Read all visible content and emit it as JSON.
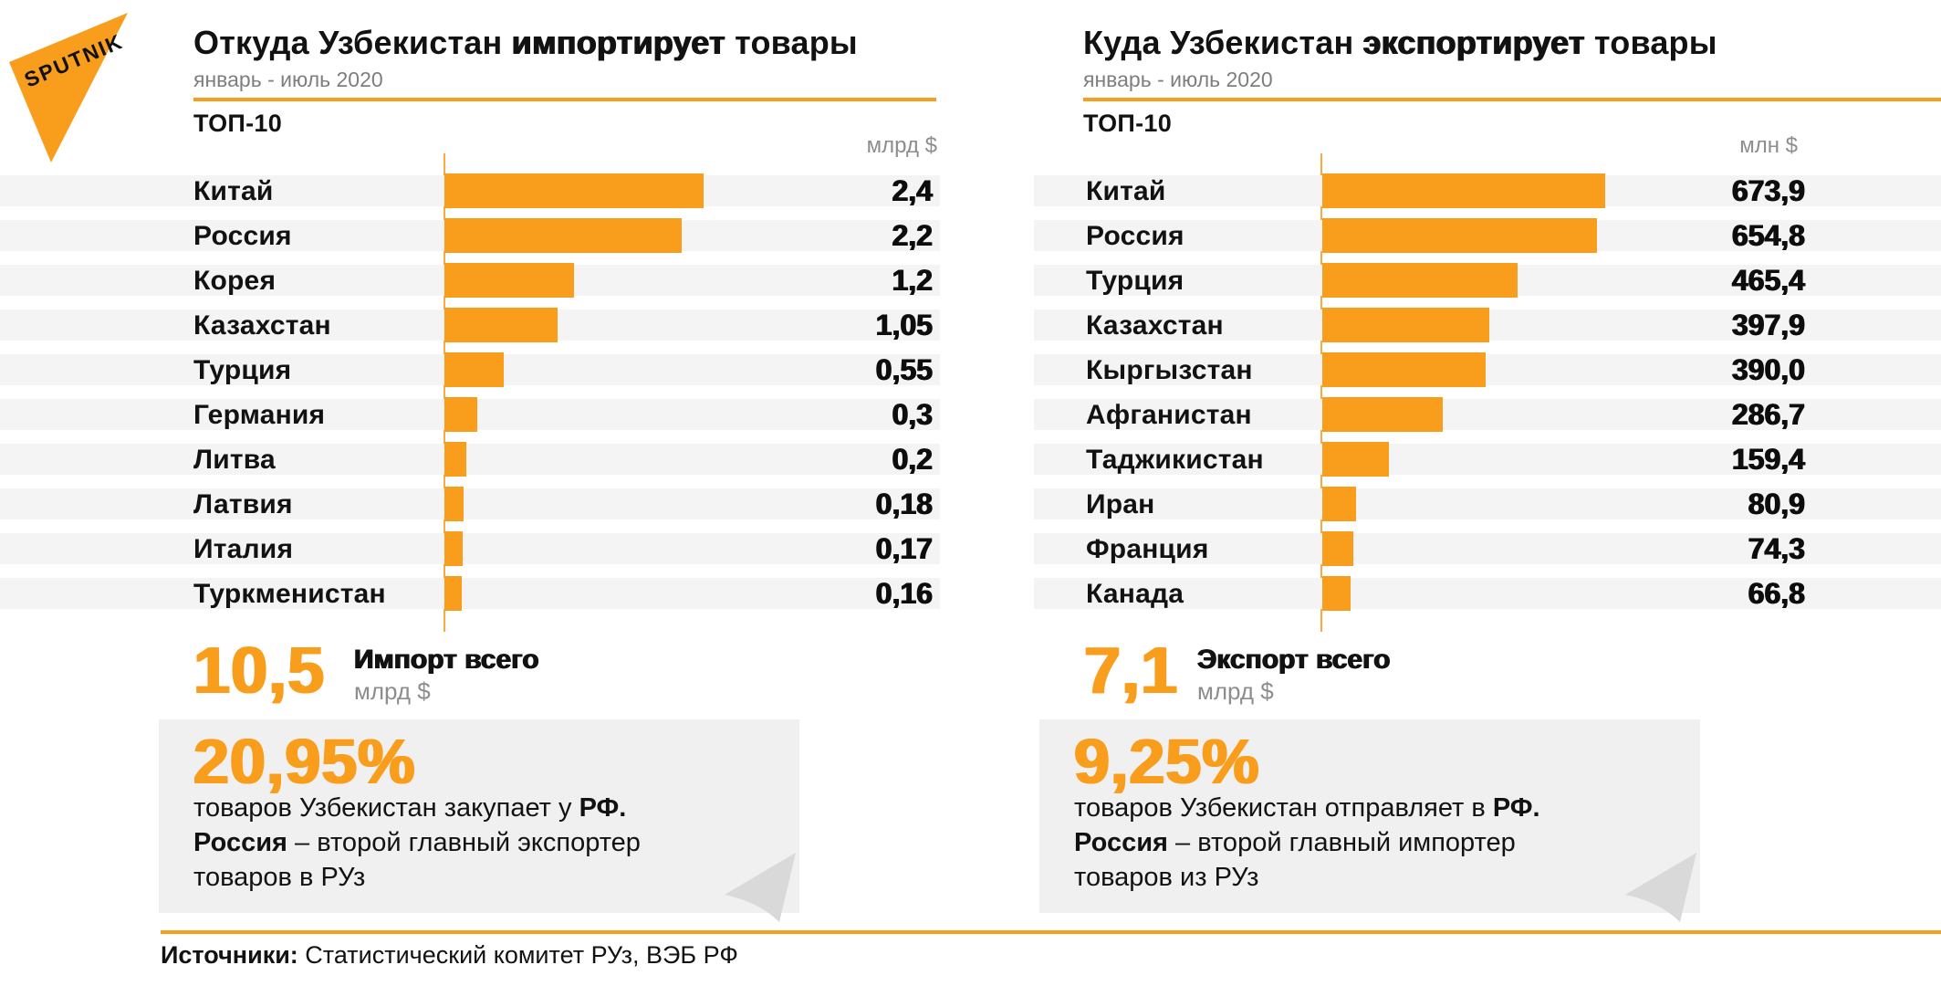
{
  "brand": {
    "logo_text": "SPUTNIK",
    "accent": "#F99D1C"
  },
  "panels": [
    {
      "title_prefix": "Откуда Узбекистан ",
      "title_bold": "импортирует",
      "title_suffix": " товары",
      "subtitle": "январь - июль 2020",
      "top_label": "ТОП-10",
      "total": {
        "value": "10,5",
        "label": "Импорт всего",
        "unit": "млрд $"
      },
      "highlight": {
        "percent": "20,95%",
        "line1": "товаров Узбекистан закупает у ",
        "line1_bold": "РФ.",
        "line2_bold": "Россия",
        "line2": " – второй главный экспортер",
        "line3": "товаров в РУз"
      }
    },
    {
      "title_prefix": "Куда Узбекистан ",
      "title_bold": "экспортирует",
      "title_suffix": " товары",
      "subtitle": "январь - июль 2020",
      "top_label": "ТОП-10",
      "total": {
        "value": "7,1",
        "label": "Экспорт всего",
        "unit": "млрд $"
      },
      "highlight": {
        "percent": "9,25%",
        "line1": "товаров Узбекистан отправляет в ",
        "line1_bold": "РФ.",
        "line2_bold": "Россия",
        "line2": " – второй главный импортер",
        "line3": "товаров из РУз"
      }
    }
  ],
  "chart_data": [
    {
      "type": "bar",
      "orientation": "horizontal",
      "title": "Откуда Узбекистан импортирует товары",
      "subtitle": "январь - июль 2020",
      "list_label": "ТОП-10",
      "unit": "млрд $",
      "categories": [
        "Китай",
        "Россия",
        "Корея",
        "Казахстан",
        "Турция",
        "Германия",
        "Литва",
        "Латвия",
        "Италия",
        "Туркменистан"
      ],
      "values": [
        2.4,
        2.2,
        1.2,
        1.05,
        0.55,
        0.3,
        0.2,
        0.18,
        0.17,
        0.16
      ],
      "value_labels": [
        "2,4",
        "2,2",
        "1,2",
        "1,05",
        "0,55",
        "0,3",
        "0,2",
        "0,18",
        "0,17",
        "0,16"
      ],
      "xlim": [
        0,
        2.4
      ],
      "bar_color": "#F99D1C",
      "grid": false,
      "legend": false
    },
    {
      "type": "bar",
      "orientation": "horizontal",
      "title": "Куда Узбекистан экспортирует товары",
      "subtitle": "январь - июль 2020",
      "list_label": "ТОП-10",
      "unit": "млн $",
      "categories": [
        "Китай",
        "Россия",
        "Турция",
        "Казахстан",
        "Кыргызстан",
        "Афганистан",
        "Таджикистан",
        "Иран",
        "Франция",
        "Канада"
      ],
      "values": [
        673.9,
        654.8,
        465.4,
        397.9,
        390.0,
        286.7,
        159.4,
        80.9,
        74.3,
        66.8
      ],
      "value_labels": [
        "673,9",
        "654,8",
        "465,4",
        "397,9",
        "390,0",
        "286,7",
        "159,4",
        "80,9",
        "74,3",
        "66,8"
      ],
      "xlim": [
        0,
        673.9
      ],
      "bar_color": "#F99D1C",
      "grid": false,
      "legend": false
    }
  ],
  "source": {
    "label": "Источники:",
    "text": " Статистический комитет РУз, ВЭБ РФ"
  }
}
